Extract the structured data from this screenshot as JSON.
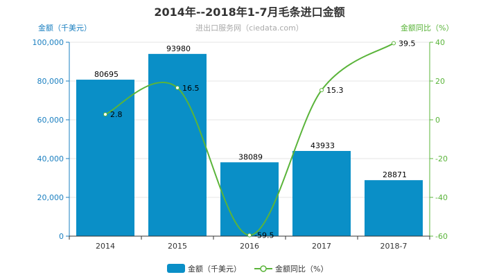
{
  "chart_data": {
    "type": "bar",
    "title": "2014年--2018年1-7月毛条进口金额",
    "subtitle": "进出口服务网（ciedata.com）",
    "categories": [
      "2014",
      "2015",
      "2016",
      "2017",
      "2018-7"
    ],
    "series": [
      {
        "name": "金额（千美元）",
        "type": "bar",
        "axis": "left",
        "values": [
          80695,
          93980,
          38089,
          43933,
          28871
        ]
      },
      {
        "name": "金额同比（%）",
        "type": "line",
        "axis": "right",
        "values": [
          2.8,
          16.5,
          -59.5,
          15.3,
          39.5
        ]
      }
    ],
    "left_axis": {
      "label": "金额（千美元）",
      "range": [
        0,
        100000
      ],
      "ticks": [
        "0",
        "20,000",
        "40,000",
        "60,000",
        "80,000",
        "100,000"
      ]
    },
    "right_axis": {
      "label": "金额同比（%）",
      "range": [
        -60,
        40
      ],
      "ticks": [
        "-60",
        "-40",
        "-20",
        "0",
        "20",
        "40"
      ]
    },
    "legend_position": "bottom",
    "colors": {
      "bar": "#0a8fc7",
      "line": "#5ab43a",
      "left_axis": "#1a7fc0",
      "right_axis": "#5ab43a"
    }
  }
}
